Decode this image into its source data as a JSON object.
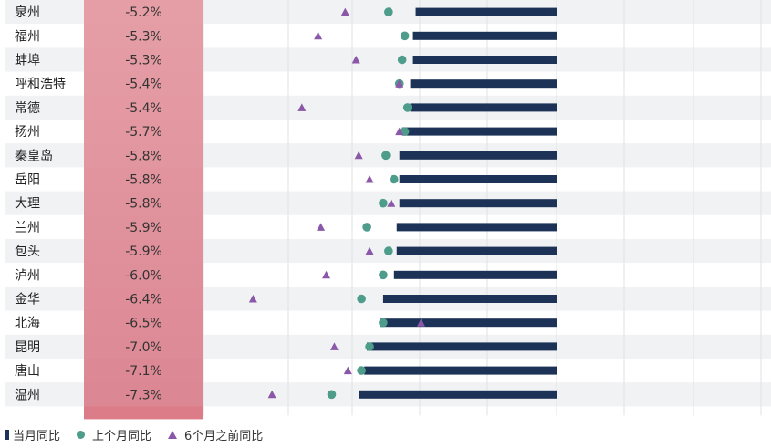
{
  "chart_data": {
    "type": "bar",
    "categories": [
      "泉州",
      "福州",
      "蚌埠",
      "呼和浩特",
      "常德",
      "扬州",
      "秦皇岛",
      "岳阳",
      "大理",
      "兰州",
      "包头",
      "泸州",
      "金华",
      "北海",
      "昆明",
      "唐山",
      "温州"
    ],
    "series": [
      {
        "name": "当月同比",
        "values": [
          -5.2,
          -5.3,
          -5.3,
          -5.4,
          -5.4,
          -5.7,
          -5.8,
          -5.8,
          -5.8,
          -5.9,
          -5.9,
          -6.0,
          -6.4,
          -6.5,
          -7.0,
          -7.1,
          -7.3
        ],
        "labels": [
          "-5.2%",
          "-5.3%",
          "-5.3%",
          "-5.4%",
          "-5.4%",
          "-5.7%",
          "-5.8%",
          "-5.8%",
          "-5.8%",
          "-5.9%",
          "-5.9%",
          "-6.0%",
          "-6.4%",
          "-6.5%",
          "-7.0%",
          "-7.1%",
          "-7.3%"
        ]
      },
      {
        "name": "上个月同比",
        "values": [
          -6.2,
          -5.6,
          -5.7,
          -5.8,
          -5.5,
          -5.6,
          -6.3,
          -6.0,
          -6.4,
          -7.0,
          -6.2,
          -6.4,
          -7.2,
          -6.4,
          -6.9,
          -7.2,
          -8.3
        ]
      },
      {
        "name": "6个月之前同比",
        "values": [
          -7.8,
          -8.8,
          -7.4,
          -5.8,
          -9.4,
          -5.8,
          -7.3,
          -6.9,
          -6.1,
          -8.7,
          -6.9,
          -8.5,
          -11.2,
          -5.0,
          -8.2,
          -7.7,
          -10.5
        ]
      }
    ],
    "xlim": [
      -11.5,
      0
    ],
    "grid": true,
    "legend": "bottom-left",
    "colors": {
      "bar": "#1c3257",
      "dot": "#4e9c8a",
      "triangle": "#8b57a8",
      "label_fill": "#e4919c",
      "row_alt": "#f1f2f4",
      "row": "#ffffff"
    }
  },
  "legend": {
    "items": [
      "当月同比",
      "上个月同比",
      "6个月之前同比"
    ]
  }
}
